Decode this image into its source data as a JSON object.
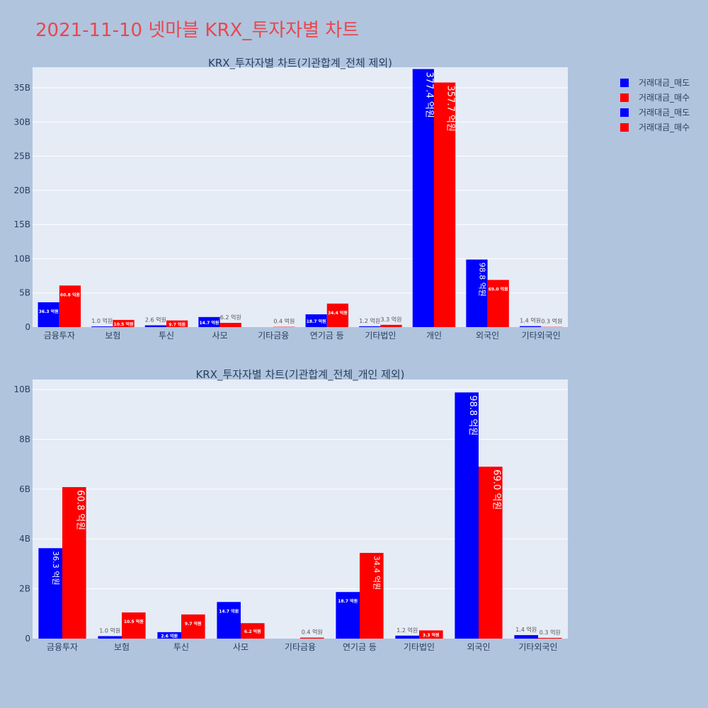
{
  "title": "2021-11-10 넷마블 KRX_투자자별 차트",
  "legend": [
    {
      "name": "거래대금_매도",
      "color": "#0000ff"
    },
    {
      "name": "거래대금_매수",
      "color": "#ff0000"
    },
    {
      "name": "거래대금_매도",
      "color": "#0000ff"
    },
    {
      "name": "거래대금_매수",
      "color": "#ff0000"
    }
  ],
  "chart_data": [
    {
      "type": "bar",
      "title": "KRX_투자자별 차트(기관합계_전체 제외)",
      "categories": [
        "금융투자",
        "보험",
        "투신",
        "사모",
        "기타금융",
        "연기금 등",
        "기타법인",
        "개인",
        "외국인",
        "기타외국인"
      ],
      "ylim": [
        0,
        38
      ],
      "y_unit": "B",
      "yticks": [
        0,
        5,
        10,
        15,
        20,
        25,
        30,
        35
      ],
      "ytick_labels": [
        "0",
        "5B",
        "10B",
        "15B",
        "20B",
        "25B",
        "30B",
        "35B"
      ],
      "grid": true,
      "series": [
        {
          "name": "거래대금_매도",
          "color": "#0000ff",
          "values": [
            3.63,
            0.1,
            0.26,
            1.47,
            0.0,
            1.87,
            0.12,
            37.74,
            9.88,
            0.14
          ],
          "labels": [
            "36.3 억원",
            "1.0 억원",
            "2.6 억원",
            "14.7 억원",
            "",
            "18.7 억원",
            "1.2 억원",
            "377.4 억원",
            "98.8 억원",
            "1.4 억원"
          ]
        },
        {
          "name": "거래대금_매수",
          "color": "#ff0000",
          "values": [
            6.08,
            1.05,
            0.97,
            0.62,
            0.04,
            3.44,
            0.33,
            35.77,
            6.9,
            0.03
          ],
          "labels": [
            "60.8 억원",
            "10.5 억원",
            "9.7 억원",
            "6.2 억원",
            "0.4 억원",
            "34.4 억원",
            "3.3 억원",
            "357.7 억원",
            "69.0 억원",
            "0.3 억원"
          ]
        }
      ]
    },
    {
      "type": "bar",
      "title": "KRX_투자자별 차트(기관합계_전체_개인 제외)",
      "categories": [
        "금융투자",
        "보험",
        "투신",
        "사모",
        "기타금융",
        "연기금 등",
        "기타법인",
        "외국인",
        "기타외국인"
      ],
      "ylim": [
        0,
        10.4
      ],
      "y_unit": "B",
      "yticks": [
        0,
        2,
        4,
        6,
        8,
        10
      ],
      "ytick_labels": [
        "0",
        "2B",
        "4B",
        "6B",
        "8B",
        "10B"
      ],
      "grid": true,
      "series": [
        {
          "name": "거래대금_매도",
          "color": "#0000ff",
          "values": [
            3.63,
            0.1,
            0.26,
            1.47,
            0.0,
            1.87,
            0.12,
            9.88,
            0.14
          ],
          "labels": [
            "36.3 억원",
            "1.0 억원",
            "2.6 억원",
            "14.7 억원",
            "",
            "18.7 억원",
            "1.2 억원",
            "98.8 억원",
            "1.4 억원"
          ]
        },
        {
          "name": "거래대금_매수",
          "color": "#ff0000",
          "values": [
            6.08,
            1.05,
            0.97,
            0.62,
            0.04,
            3.44,
            0.33,
            6.9,
            0.03
          ],
          "labels": [
            "60.8 억원",
            "10.5 억원",
            "9.7 억원",
            "6.2 억원",
            "0.4 억원",
            "34.4 억원",
            "3.3 억원",
            "69.0 억원",
            "0.3 억원"
          ]
        }
      ]
    }
  ]
}
